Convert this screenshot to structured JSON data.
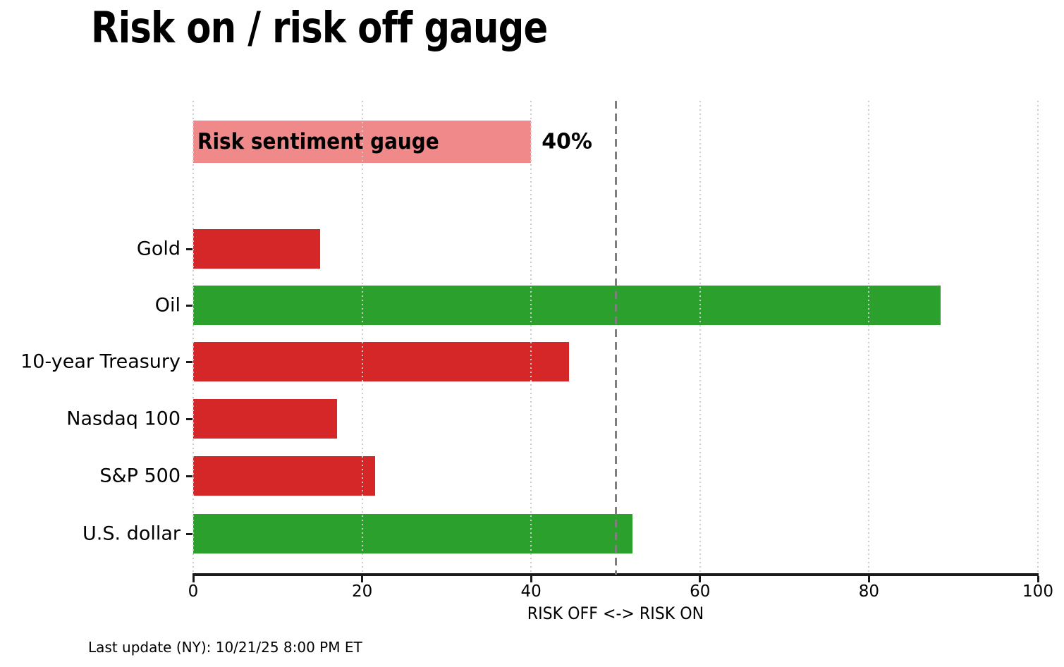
{
  "title": "Risk on / risk off gauge",
  "footer": "Last update (NY): 10/21/25 8:00 PM ET",
  "chart_data": {
    "type": "bar",
    "orientation": "horizontal",
    "title": "Risk on / risk off gauge",
    "xlabel": "RISK OFF <-> RISK ON",
    "xlim": [
      0,
      100
    ],
    "xticks": [
      0,
      20,
      40,
      60,
      80,
      100
    ],
    "grid": "vertical dotted gridlines at each xtick",
    "threshold_line": {
      "x": 50,
      "style": "dashed",
      "color": "#7f7f7f"
    },
    "gauge": {
      "label": "Risk sentiment gauge",
      "value": 40,
      "value_label": "40%",
      "color": "#f08a8a"
    },
    "categories": [
      "Gold",
      "Oil",
      "10-year Treasury",
      "Nasdaq 100",
      "S&P 500",
      "U.S. dollar"
    ],
    "values": [
      15,
      88.5,
      44.5,
      17,
      21.5,
      52
    ],
    "bar_colors": [
      "#d62728",
      "#2ca02c",
      "#d62728",
      "#d62728",
      "#d62728",
      "#2ca02c"
    ],
    "colors": {
      "risk_off": "#d62728",
      "risk_on": "#2ca02c",
      "gauge": "#f08a8a"
    }
  }
}
